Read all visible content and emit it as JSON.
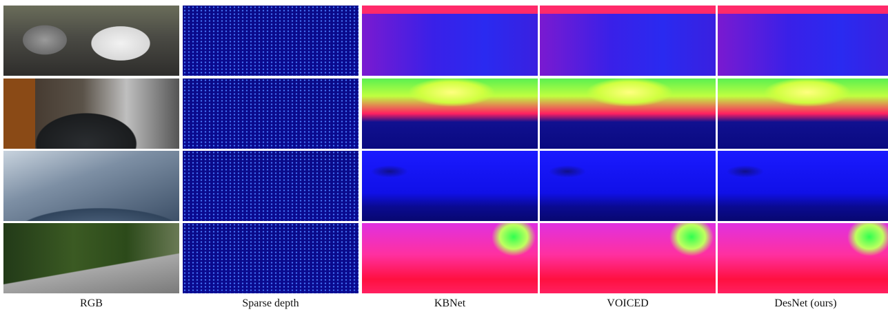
{
  "figure": {
    "columns": [
      "RGB",
      "Sparse depth",
      "KBNet",
      "VOICED",
      "DesNet (ours)"
    ]
  }
}
